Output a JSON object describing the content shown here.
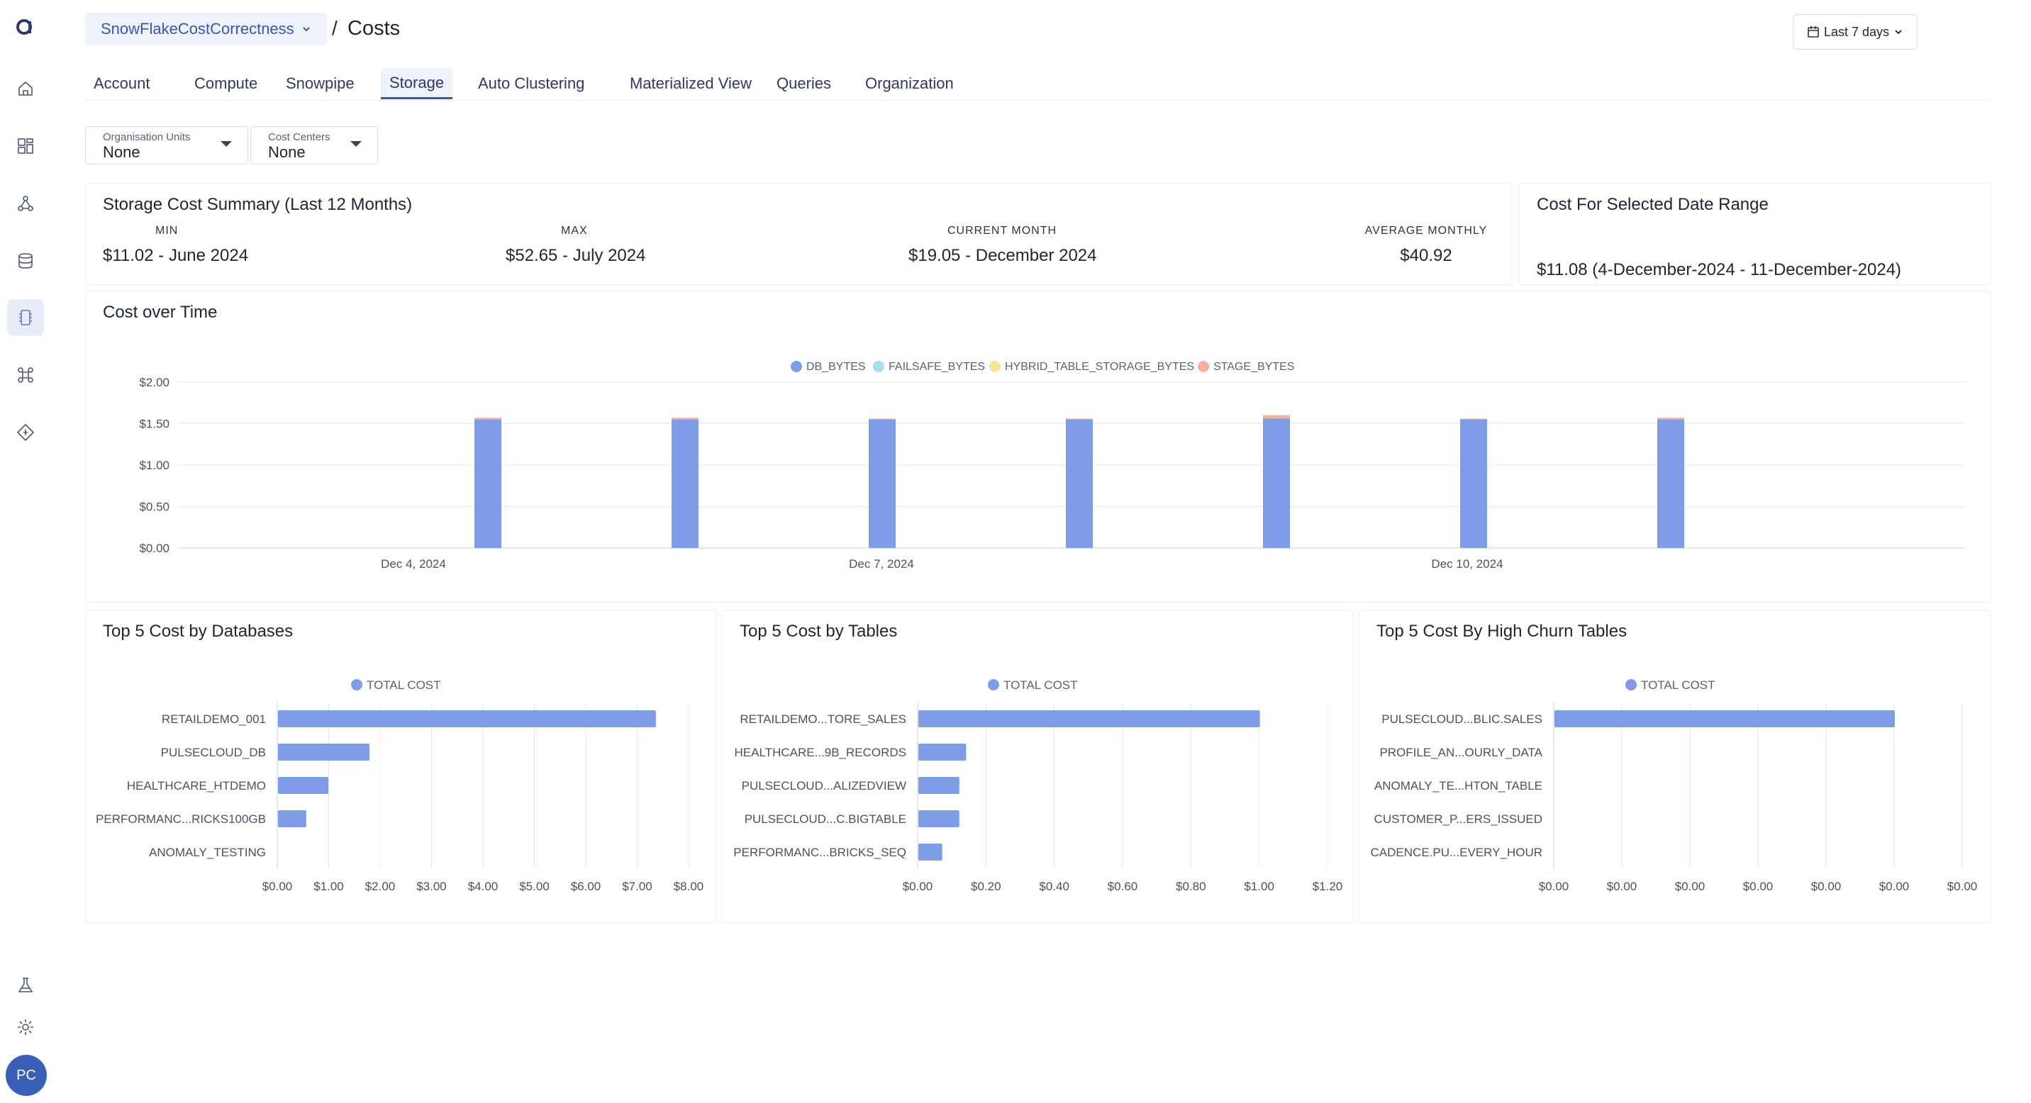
{
  "header": {
    "workspace": "SnowFlakeCostCorrectness",
    "separator": "/",
    "title": "Costs",
    "date_range": "Last 7 days"
  },
  "sidebar": {
    "logo": "a",
    "items": [
      "home-icon",
      "dashboard-icon",
      "lineage-icon",
      "database-icon",
      "cost-icon",
      "command-icon",
      "diamond-icon",
      "flask-icon",
      "gear-icon"
    ],
    "avatar": "PC"
  },
  "tabs": [
    "Account",
    "Compute",
    "Snowpipe",
    "Storage",
    "Auto Clustering",
    "Materialized View",
    "Queries",
    "Organization"
  ],
  "active_tab": "Storage",
  "filters": [
    {
      "label": "Organisation Units",
      "value": "None"
    },
    {
      "label": "Cost Centers",
      "value": "None"
    }
  ],
  "summary": {
    "title": "Storage Cost Summary (Last 12 Months)",
    "stats": [
      {
        "label": "MIN",
        "value": "$11.02 - June 2024"
      },
      {
        "label": "MAX",
        "value": "$52.65 - July 2024"
      },
      {
        "label": "CURRENT MONTH",
        "value": "$19.05 - December 2024"
      },
      {
        "label": "AVERAGE MONTHLY",
        "value": "$40.92"
      }
    ]
  },
  "range_card": {
    "title": "Cost For Selected Date Range",
    "value": "$11.08 (4-December-2024 - 11-December-2024)"
  },
  "colors": {
    "db_bytes": "#7f9ce6",
    "failsafe_bytes": "#a8def0",
    "hybrid": "#f7e3a0",
    "stage_bytes": "#f4b09a",
    "total_cost": "#7f9ce6"
  },
  "chart_data": [
    {
      "type": "bar",
      "title": "Cost over Time",
      "stacked": true,
      "legend_position": "top-center",
      "x_ticks": [
        "Dec 4, 2024",
        "Dec 7, 2024",
        "Dec 10, 2024"
      ],
      "categories": [
        "Dec 4, 2024",
        "Dec 5, 2024",
        "Dec 6, 2024",
        "Dec 7, 2024",
        "Dec 8, 2024",
        "Dec 9, 2024",
        "Dec 10, 2024"
      ],
      "series": [
        {
          "name": "DB_BYTES",
          "values": [
            1.55,
            1.55,
            1.55,
            1.55,
            1.56,
            1.55,
            1.55
          ]
        },
        {
          "name": "FAILSAFE_BYTES",
          "values": [
            0,
            0,
            0,
            0,
            0,
            0,
            0
          ]
        },
        {
          "name": "HYBRID_TABLE_STORAGE_BYTES",
          "values": [
            0,
            0,
            0,
            0,
            0,
            0,
            0
          ]
        },
        {
          "name": "STAGE_BYTES",
          "values": [
            0.02,
            0.02,
            0.01,
            0.01,
            0.04,
            0.01,
            0.02
          ]
        }
      ],
      "y_ticks": [
        "$0.00",
        "$0.50",
        "$1.00",
        "$1.50",
        "$2.00"
      ],
      "ylim": [
        0,
        2
      ],
      "grid": true
    },
    {
      "type": "bar",
      "orientation": "horizontal",
      "title": "Top 5 Cost by Databases",
      "legend": "TOTAL COST",
      "categories": [
        "RETAILDEMO_001",
        "PULSECLOUD_DB",
        "HEALTHCARE_HTDEMO",
        "PERFORMANC...RICKS100GB",
        "ANOMALY_TESTING"
      ],
      "values": [
        7.35,
        1.78,
        0.98,
        0.55,
        0
      ],
      "x_ticks": [
        "$0.00",
        "$1.00",
        "$2.00",
        "$3.00",
        "$4.00",
        "$5.00",
        "$6.00",
        "$7.00",
        "$8.00"
      ],
      "xlim": [
        0,
        8
      ]
    },
    {
      "type": "bar",
      "orientation": "horizontal",
      "title": "Top 5 Cost by Tables",
      "legend": "TOTAL COST",
      "categories": [
        "RETAILDEMO...TORE_SALES",
        "HEALTHCARE...9B_RECORDS",
        "PULSECLOUD...ALIZEDVIEW",
        "PULSECLOUD...C.BIGTABLE",
        "PERFORMANC...BRICKS_SEQ"
      ],
      "values": [
        1.0,
        0.14,
        0.12,
        0.12,
        0.07
      ],
      "x_ticks": [
        "$0.00",
        "$0.20",
        "$0.40",
        "$0.60",
        "$0.80",
        "$1.00",
        "$1.20"
      ],
      "xlim": [
        0,
        1.2
      ]
    },
    {
      "type": "bar",
      "orientation": "horizontal",
      "title": "Top 5 Cost By High Churn Tables",
      "legend": "TOTAL COST",
      "categories": [
        "PULSECLOUD...BLIC.SALES",
        "PROFILE_AN...OURLY_DATA",
        "ANOMALY_TE...HTON_TABLE",
        "CUSTOMER_P...ERS_ISSUED",
        "CADENCE.PU...EVERY_HOUR"
      ],
      "values": [
        0.005,
        0,
        0,
        0,
        0
      ],
      "x_ticks": [
        "$0.00",
        "$0.00",
        "$0.00",
        "$0.00",
        "$0.00",
        "$0.00",
        "$0.00"
      ],
      "xlim": [
        0,
        0.006
      ]
    }
  ]
}
